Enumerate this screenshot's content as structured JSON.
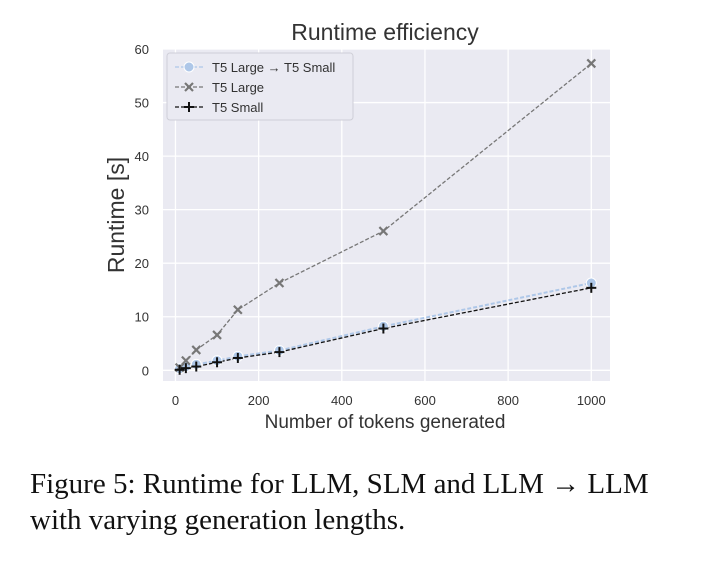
{
  "chart_data": {
    "type": "line",
    "title": "Runtime efficiency",
    "xlabel": "Number of tokens generated",
    "ylabel": "Runtime [s]",
    "xlim": [
      -30,
      1045
    ],
    "ylim": [
      -2,
      60
    ],
    "xticks": [
      0,
      200,
      400,
      600,
      800,
      1000
    ],
    "yticks": [
      0,
      10,
      20,
      30,
      40,
      50,
      60
    ],
    "grid": true,
    "legend_position": "top-left",
    "series": [
      {
        "name": "T5 Large → T5 Small",
        "marker": "circle",
        "style": "dashed",
        "color": "#aec7e8",
        "x": [
          10,
          25,
          50,
          100,
          150,
          250,
          500,
          1000
        ],
        "y": [
          0.3,
          0.7,
          1.1,
          1.8,
          2.6,
          3.7,
          8.2,
          16.3
        ]
      },
      {
        "name": "T5 Large",
        "marker": "x",
        "style": "dashed",
        "color": "#777777",
        "x": [
          10,
          25,
          50,
          100,
          150,
          250,
          500,
          1000
        ],
        "y": [
          0.5,
          1.8,
          3.8,
          6.6,
          11.3,
          16.3,
          26.0,
          57.3
        ]
      },
      {
        "name": "T5 Small",
        "marker": "plus",
        "style": "dashed",
        "color": "#111111",
        "x": [
          10,
          25,
          50,
          100,
          150,
          250,
          500,
          1000
        ],
        "y": [
          0.1,
          0.4,
          0.7,
          1.5,
          2.3,
          3.4,
          7.8,
          15.4
        ]
      }
    ]
  },
  "caption": {
    "text": "Figure 5: Runtime for LLM, SLM and LLM → LLM with varying generation lengths."
  },
  "colors": {
    "plot_background": "#eaeaf2",
    "grid": "#ffffff"
  }
}
